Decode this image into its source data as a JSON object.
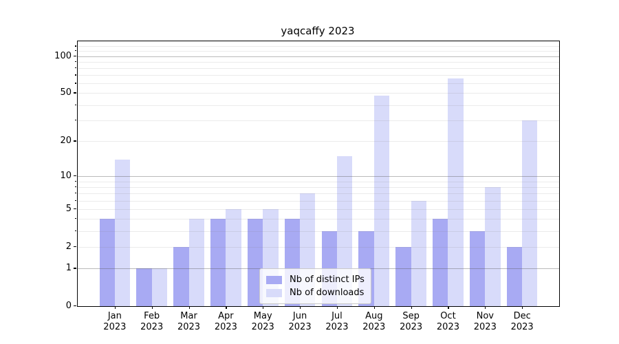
{
  "title": "yaqcaffy 2023",
  "chart_data": {
    "type": "bar",
    "categories": [
      "Jan",
      "Feb",
      "Mar",
      "Apr",
      "May",
      "Jun",
      "Jul",
      "Aug",
      "Sep",
      "Oct",
      "Nov",
      "Dec"
    ],
    "year": "2023",
    "series": [
      {
        "name": "Nb of distinct IPs",
        "color": "#a8aaf3",
        "values": [
          4,
          1,
          2,
          4,
          4,
          4,
          3,
          3,
          2,
          4,
          3,
          2
        ]
      },
      {
        "name": "Nb of downloads",
        "color": "#d8dbfa",
        "values": [
          14,
          1,
          4,
          5,
          5,
          7,
          15,
          48,
          6,
          66,
          8,
          30
        ]
      }
    ],
    "yscale": "log1p",
    "ylim": [
      0,
      131
    ],
    "yticks": [
      0,
      1,
      2,
      5,
      10,
      20,
      50,
      100
    ],
    "grid_major": [
      1,
      10,
      100
    ],
    "grid_minor": [
      2,
      3,
      4,
      5,
      6,
      7,
      8,
      9,
      20,
      30,
      40,
      50,
      60,
      70,
      80,
      90,
      110,
      120
    ],
    "legend_position": "lower-center",
    "grid": "on"
  },
  "colors": {
    "background": "#ffffff",
    "spine": "#000000",
    "text": "#000000",
    "bar_distinct_ips": "#a8aaf3",
    "bar_downloads": "#d8dbfa"
  }
}
